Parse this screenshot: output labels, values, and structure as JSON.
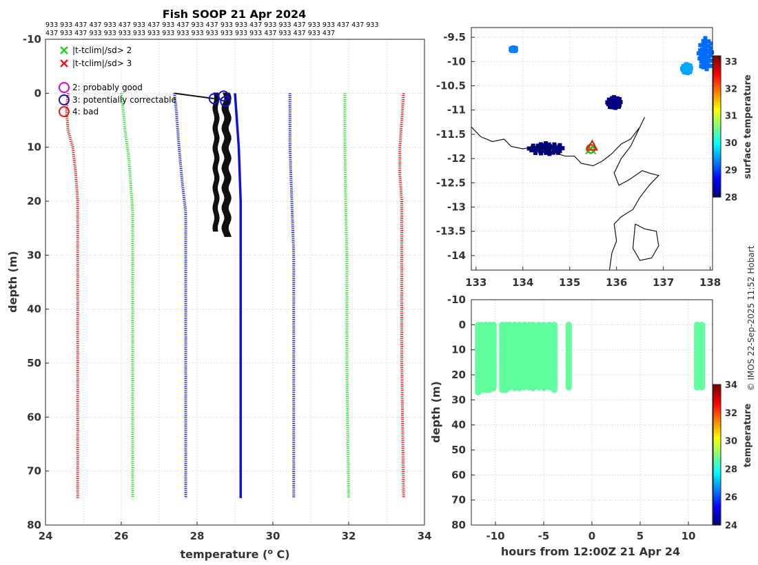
{
  "header": {
    "title": "Fish SOOP 21 Apr 2024",
    "platform_line1": "933 933 437 437 933 437 933 437 933 437 933 437 933 933 437 933 933 437 933 933 437 437 933",
    "platform_line2": "437 933 437 933 933 933 933 933 933 933 933 933 933 933 933 437 933 437 933 437"
  },
  "credit": "© IMOS 22-Sep-2025 11:52 Hobart",
  "chart_data": [
    {
      "id": "profile",
      "type": "line",
      "xlabel": "temperature (° C)",
      "xlabel_main": "temperature (",
      "xlabel_sup": "o",
      "xlabel_end": " C)",
      "ylabel": "depth (m)",
      "xlim": [
        24,
        34
      ],
      "ylim": [
        -10,
        80
      ],
      "xticks": [
        "24",
        "26",
        "28",
        "30",
        "32",
        "34"
      ],
      "yticks": [
        "-10",
        "0",
        "10",
        "20",
        "30",
        "40",
        "50",
        "60",
        "70",
        "80"
      ],
      "legend": {
        "position": "top-left",
        "items": [
          {
            "marker": "x",
            "color": "#22cc22",
            "label": "|t-tclim|/sd> 2"
          },
          {
            "marker": "x",
            "color": "#ee1111",
            "label": "|t-tclim|/sd> 3"
          },
          {
            "marker": "o",
            "color": "#dd00dd",
            "label": "2: probably good"
          },
          {
            "marker": "o",
            "color": "#1111cc",
            "label": "3: potentially correctable"
          },
          {
            "marker": "o",
            "color": "#ee1111",
            "label": "4: bad"
          }
        ]
      },
      "series": [
        {
          "name": "clim -3sd",
          "color": "#dd1111",
          "style": "dotted",
          "points": [
            [
              24.6,
              0
            ],
            [
              24.55,
              3
            ],
            [
              24.6,
              7
            ],
            [
              24.72,
              10
            ],
            [
              24.8,
              15
            ],
            [
              24.85,
              20
            ],
            [
              24.85,
              30
            ],
            [
              24.85,
              50
            ],
            [
              24.85,
              75
            ]
          ]
        },
        {
          "name": "clim -2sd",
          "color": "#22dd22",
          "style": "dotted",
          "points": [
            [
              26.0,
              0
            ],
            [
              26.05,
              3
            ],
            [
              26.1,
              7
            ],
            [
              26.2,
              12
            ],
            [
              26.25,
              17
            ],
            [
              26.3,
              22
            ],
            [
              26.3,
              30
            ],
            [
              26.3,
              50
            ],
            [
              26.3,
              75
            ]
          ]
        },
        {
          "name": "clim -1sd",
          "color": "#1111cc",
          "style": "dotted",
          "points": [
            [
              27.4,
              0
            ],
            [
              27.45,
              3
            ],
            [
              27.5,
              8
            ],
            [
              27.55,
              12
            ],
            [
              27.6,
              16
            ],
            [
              27.7,
              22
            ],
            [
              27.7,
              30
            ],
            [
              27.7,
              50
            ],
            [
              27.7,
              75
            ]
          ]
        },
        {
          "name": "clim +1sd",
          "color": "#1111cc",
          "style": "dotted",
          "points": [
            [
              30.45,
              0
            ],
            [
              30.45,
              10
            ],
            [
              30.5,
              20
            ],
            [
              30.55,
              30
            ],
            [
              30.55,
              50
            ],
            [
              30.55,
              75
            ]
          ]
        },
        {
          "name": "clim +2sd",
          "color": "#22dd22",
          "style": "dotted",
          "points": [
            [
              31.9,
              0
            ],
            [
              31.9,
              10
            ],
            [
              31.92,
              20
            ],
            [
              31.95,
              30
            ],
            [
              31.95,
              50
            ],
            [
              32.0,
              75
            ]
          ]
        },
        {
          "name": "clim +3sd",
          "color": "#dd1111",
          "style": "dotted",
          "points": [
            [
              33.45,
              0
            ],
            [
              33.4,
              5
            ],
            [
              33.35,
              10
            ],
            [
              33.35,
              15
            ],
            [
              33.4,
              20
            ],
            [
              33.4,
              30
            ],
            [
              33.4,
              50
            ],
            [
              33.45,
              75
            ]
          ]
        },
        {
          "name": "mean profile",
          "color": "#1111dd",
          "style": "solid",
          "points": [
            [
              29.0,
              0
            ],
            [
              29.05,
              5
            ],
            [
              29.1,
              10
            ],
            [
              29.15,
              20
            ],
            [
              29.15,
              27
            ],
            [
              29.15,
              75
            ]
          ]
        }
      ],
      "profiles": [
        {
          "temp_lo": 28.45,
          "temp_hi": 28.55,
          "max_depth": 25.5
        },
        {
          "temp_lo": 28.7,
          "temp_hi": 28.85,
          "max_depth": 26.5
        }
      ],
      "surface_link": [
        [
          27.4,
          0
        ],
        [
          28.45,
          1
        ]
      ],
      "flag_circles": [
        {
          "temp": 28.45,
          "depth": 1,
          "color": "#1111cc"
        },
        {
          "temp": 28.7,
          "depth": 0.5,
          "color": "#1111cc"
        },
        {
          "temp": 28.75,
          "depth": 1.5,
          "color": "#1111cc"
        }
      ]
    },
    {
      "id": "map",
      "type": "heatmap",
      "xlim": [
        132.9,
        138.05
      ],
      "ylim": [
        -14.3,
        -9.3
      ],
      "xticks": [
        "133",
        "134",
        "135",
        "136",
        "137",
        "138"
      ],
      "yticks": [
        "-9.5",
        "-10",
        "-10.5",
        "-11",
        "-11.5",
        "-12",
        "-12.5",
        "-13",
        "-13.5",
        "-14"
      ],
      "colorbar": {
        "label": "surface temperature",
        "range": [
          28,
          33.2
        ],
        "ticks": [
          "28",
          "29",
          "30",
          "31",
          "32",
          "33"
        ]
      },
      "sst_patches": [
        {
          "lon": 134.5,
          "lat": -11.8,
          "value": 28.0,
          "rx": 0.38,
          "ry": 0.12
        },
        {
          "lon": 135.95,
          "lat": -10.85,
          "value": 28.0,
          "rx": 0.15,
          "ry": 0.12
        },
        {
          "lon": 137.9,
          "lat": -9.85,
          "value": 29.2,
          "rx": 0.15,
          "ry": 0.35
        },
        {
          "lon": 137.5,
          "lat": -10.15,
          "value": 29.5,
          "rx": 0.1,
          "ry": 0.1
        },
        {
          "lon": 133.8,
          "lat": -9.75,
          "value": 29.3,
          "rx": 0.06,
          "ry": 0.04
        }
      ],
      "track_points": [
        [
          135.45,
          -11.8
        ],
        [
          135.5,
          -11.85
        ],
        [
          135.4,
          -11.85
        ],
        [
          135.48,
          -11.75
        ]
      ]
    },
    {
      "id": "time_depth",
      "type": "scatter",
      "xlabel": "hours from 12:00Z 21 Apr 24",
      "ylabel": "depth (m)",
      "xlim": [
        -12.5,
        12.5
      ],
      "ylim": [
        -10,
        80
      ],
      "xticks": [
        "-10",
        "-5",
        "0",
        "5",
        "10"
      ],
      "yticks": [
        "-10",
        "0",
        "10",
        "20",
        "30",
        "40",
        "50",
        "60",
        "70",
        "80"
      ],
      "colorbar": {
        "label": "temperature",
        "range": [
          24,
          34
        ],
        "ticks": [
          "24",
          "26",
          "28",
          "30",
          "32",
          "34"
        ]
      },
      "casts": [
        {
          "hour": -11.8,
          "max_depth": 27
        },
        {
          "hour": -11.4,
          "max_depth": 26
        },
        {
          "hour": -11.0,
          "max_depth": 26
        },
        {
          "hour": -10.6,
          "max_depth": 26
        },
        {
          "hour": -10.2,
          "max_depth": 25.5
        },
        {
          "hour": -9.3,
          "max_depth": 26
        },
        {
          "hour": -8.9,
          "max_depth": 26
        },
        {
          "hour": -8.5,
          "max_depth": 25
        },
        {
          "hour": -8.0,
          "max_depth": 25.5
        },
        {
          "hour": -7.5,
          "max_depth": 25.5
        },
        {
          "hour": -7.0,
          "max_depth": 25
        },
        {
          "hour": -6.5,
          "max_depth": 25
        },
        {
          "hour": -6.1,
          "max_depth": 25.5
        },
        {
          "hour": -5.5,
          "max_depth": 25
        },
        {
          "hour": -5.0,
          "max_depth": 25.5
        },
        {
          "hour": -4.4,
          "max_depth": 25
        },
        {
          "hour": -3.9,
          "max_depth": 26
        },
        {
          "hour": -2.4,
          "max_depth": 25
        },
        {
          "hour": 10.9,
          "max_depth": 25
        },
        {
          "hour": 11.4,
          "max_depth": 25
        }
      ],
      "cast_temperature": 28.7
    }
  ]
}
